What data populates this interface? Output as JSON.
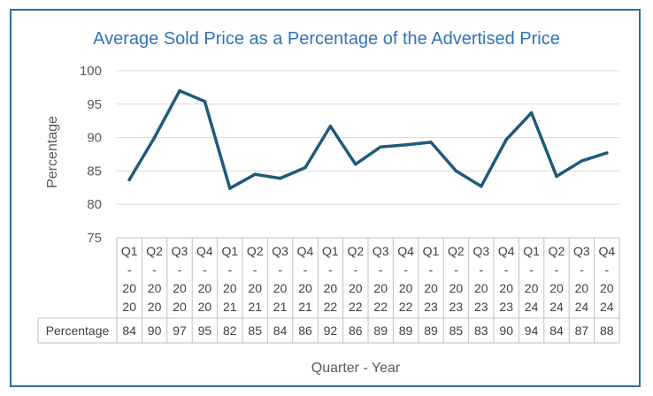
{
  "chart_data": {
    "type": "line",
    "title": "Average Sold Price as a Percentage of the Advertised Price",
    "xlabel": "Quarter - Year",
    "ylabel": "Percentage",
    "ylim": [
      75,
      100
    ],
    "yticks": [
      75,
      80,
      85,
      90,
      95,
      100
    ],
    "grid": true,
    "categories": [
      [
        "Q1",
        "-",
        "20",
        "20"
      ],
      [
        "Q2",
        "-",
        "20",
        "20"
      ],
      [
        "Q3",
        "-",
        "20",
        "20"
      ],
      [
        "Q4",
        "-",
        "20",
        "20"
      ],
      [
        "Q1",
        "-",
        "20",
        "21"
      ],
      [
        "Q2",
        "-",
        "20",
        "21"
      ],
      [
        "Q3",
        "-",
        "20",
        "21"
      ],
      [
        "Q4",
        "-",
        "20",
        "21"
      ],
      [
        "Q1",
        "-",
        "20",
        "22"
      ],
      [
        "Q2",
        "-",
        "20",
        "22"
      ],
      [
        "Q3",
        "-",
        "20",
        "22"
      ],
      [
        "Q4",
        "-",
        "20",
        "22"
      ],
      [
        "Q1",
        "-",
        "20",
        "23"
      ],
      [
        "Q2",
        "-",
        "20",
        "23"
      ],
      [
        "Q3",
        "-",
        "20",
        "23"
      ],
      [
        "Q4",
        "-",
        "20",
        "23"
      ],
      [
        "Q1",
        "-",
        "20",
        "24"
      ],
      [
        "Q2",
        "-",
        "20",
        "24"
      ],
      [
        "Q3",
        "-",
        "20",
        "24"
      ],
      [
        "Q4",
        "-",
        "20",
        "24"
      ]
    ],
    "series": [
      {
        "name": "Percentage",
        "color": "#1f5a7a",
        "values": [
          83.7,
          90.0,
          97.0,
          95.4,
          82.4,
          84.5,
          83.9,
          85.5,
          91.7,
          86.0,
          88.6,
          88.9,
          89.3,
          85.0,
          82.7,
          89.7,
          93.7,
          84.2,
          86.5,
          87.7
        ],
        "labels": [
          "84",
          "90",
          "97",
          "95",
          "82",
          "85",
          "84",
          "86",
          "92",
          "86",
          "89",
          "89",
          "89",
          "85",
          "83",
          "90",
          "94",
          "84",
          "87",
          "88"
        ]
      }
    ]
  }
}
